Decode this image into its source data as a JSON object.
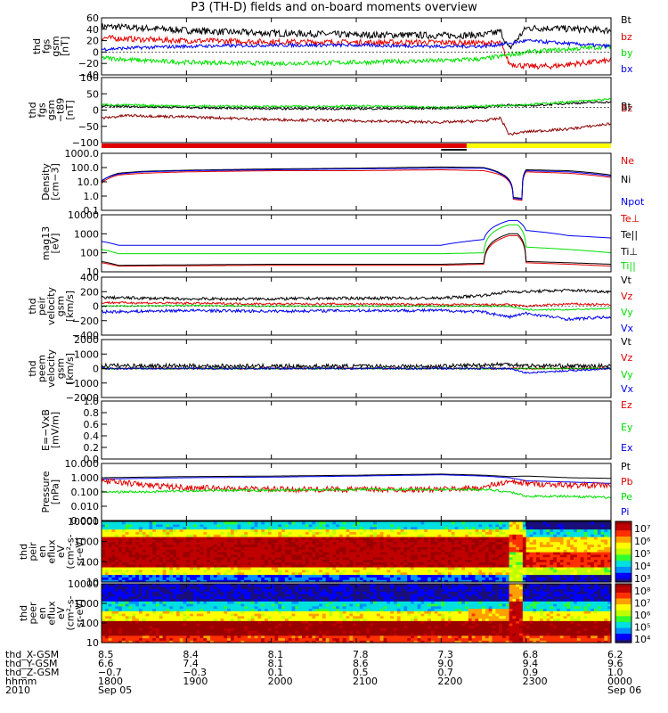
{
  "title": "P3 (TH-D) fields and on-board moments overview",
  "colors": {
    "black": "#000000",
    "red": "#e00000",
    "green": "#00e000",
    "blue": "#0000ee",
    "darkred": "#8b0000",
    "yellow": "#ffff00"
  },
  "chart_data": [
    {
      "type": "line",
      "panel": "fgs",
      "ylabel": [
        "thd",
        "fgs",
        "gsm",
        "[nT]"
      ],
      "ylim": [
        -40,
        60
      ],
      "ticks": [
        "60",
        "40",
        "20",
        "0",
        "−20",
        "−40"
      ],
      "legend": [
        {
          "text": "Bt",
          "color": "black"
        },
        {
          "text": "bz",
          "color": "red"
        },
        {
          "text": "by",
          "color": "green"
        },
        {
          "text": "bx",
          "color": "blue"
        }
      ],
      "series": [
        {
          "name": "Bt",
          "color": "black",
          "x": [
            18.0,
            18.5,
            19.0,
            19.5,
            20.0,
            20.5,
            21.0,
            21.5,
            22.0,
            22.5,
            22.7,
            22.8,
            23.0,
            23.3,
            23.6,
            24.0
          ],
          "y": [
            45,
            42,
            38,
            35,
            33,
            32,
            30,
            30,
            29,
            30,
            36,
            5,
            42,
            42,
            40,
            38
          ],
          "noise": 6
        },
        {
          "name": "bz",
          "color": "red",
          "x": [
            18.0,
            18.5,
            19.0,
            20.0,
            21.0,
            22.0,
            22.5,
            22.7,
            22.8,
            23.0,
            23.3,
            23.6,
            24.0
          ],
          "y": [
            25,
            22,
            20,
            18,
            17,
            17,
            16,
            15,
            -20,
            -25,
            -25,
            -20,
            -15
          ],
          "noise": 5
        },
        {
          "name": "by",
          "color": "green",
          "x": [
            18.0,
            18.5,
            19.0,
            20.0,
            21.0,
            22.0,
            22.5,
            22.8,
            23.0,
            23.5,
            24.0
          ],
          "y": [
            -10,
            -15,
            -18,
            -20,
            -18,
            -15,
            -12,
            -5,
            0,
            5,
            10
          ],
          "noise": 4
        },
        {
          "name": "bx",
          "color": "blue",
          "x": [
            18.0,
            18.5,
            19.0,
            20.0,
            21.0,
            22.0,
            22.5,
            22.8,
            23.0,
            23.5,
            24.0
          ],
          "y": [
            5,
            8,
            10,
            12,
            12,
            10,
            10,
            15,
            20,
            15,
            10
          ],
          "noise": 3
        }
      ]
    },
    {
      "type": "line",
      "panel": "fgs_t89",
      "ylabel": [
        "thd",
        "fgs",
        "gsm",
        "−t89",
        "[nT]"
      ],
      "ylim": [
        -130,
        110
      ],
      "ticks": [
        "100",
        "50",
        "0",
        "−50",
        "−100"
      ],
      "legend": [
        {
          "text": "Bt",
          "color": "black"
        },
        {
          "text": "Bz",
          "color": "darkred"
        }
      ],
      "series": [
        {
          "name": "Bt",
          "color": "black",
          "x": [
            18.0,
            19.0,
            20.0,
            21.0,
            22.0,
            22.5,
            22.8,
            23.0,
            23.5,
            24.0
          ],
          "y": [
            5,
            0,
            -5,
            -5,
            -3,
            0,
            10,
            5,
            15,
            20
          ],
          "noise": 4
        },
        {
          "name": "Bz",
          "color": "darkred",
          "x": [
            18.0,
            18.3,
            19.0,
            20.0,
            21.0,
            22.0,
            22.5,
            22.7,
            22.8,
            23.0,
            23.5,
            24.0
          ],
          "y": [
            -40,
            -30,
            -35,
            -45,
            -50,
            -55,
            -50,
            -40,
            -100,
            -90,
            -80,
            -60
          ],
          "noise": 5
        },
        {
          "name": "by",
          "color": "green",
          "x": [
            18.0,
            19.0,
            20.0,
            21.0,
            22.0,
            23.0,
            24.0
          ],
          "y": [
            10,
            5,
            3,
            5,
            0,
            10,
            30
          ],
          "noise": 4
        }
      ]
    },
    {
      "type": "line",
      "panel": "density",
      "ylabel": [
        "Density",
        "[cm−3]"
      ],
      "log": true,
      "ylim": [
        0.1,
        1000
      ],
      "ticks": [
        "1000.0",
        "100.0",
        "10.0",
        "1.0",
        "0.1"
      ],
      "legend": [
        {
          "text": "Ne",
          "color": "red"
        },
        {
          "text": "Ni",
          "color": "black"
        },
        {
          "text": "Npot",
          "color": "blue"
        }
      ],
      "series": [
        {
          "name": "Ne",
          "color": "red",
          "x": [
            18.0,
            18.2,
            18.5,
            19.0,
            20.0,
            21.0,
            22.0,
            22.5,
            22.7,
            22.85,
            22.95,
            23.0,
            23.5,
            24.0
          ],
          "y": [
            8,
            30,
            40,
            50,
            60,
            60,
            70,
            60,
            30,
            0.6,
            0.5,
            50,
            40,
            20
          ],
          "noise": 0
        },
        {
          "name": "Ni",
          "color": "black",
          "x": [
            18.0,
            18.2,
            18.5,
            19.0,
            20.0,
            21.0,
            22.0,
            22.5,
            22.7,
            22.85,
            22.95,
            23.0,
            23.5,
            24.0
          ],
          "y": [
            10,
            40,
            55,
            65,
            80,
            90,
            110,
            100,
            40,
            0.8,
            0.7,
            70,
            60,
            30
          ],
          "noise": 0
        },
        {
          "name": "Npot",
          "color": "blue",
          "x": [
            18.0,
            18.2,
            18.5,
            19.0,
            20.0,
            21.0,
            22.0,
            22.5,
            22.7,
            22.85,
            22.95,
            23.0,
            23.5,
            24.0
          ],
          "y": [
            12,
            35,
            50,
            60,
            70,
            80,
            90,
            90,
            35,
            0.7,
            0.6,
            60,
            50,
            25
          ],
          "noise": 0
        }
      ]
    },
    {
      "type": "line",
      "panel": "temperature",
      "ylabel": [
        "mag13",
        "[eV]"
      ],
      "log": true,
      "ylim": [
        10,
        10000
      ],
      "ticks": [
        "10000",
        "1000",
        "100",
        "10"
      ],
      "legend": [
        {
          "text": "Te⊥",
          "color": "red"
        },
        {
          "text": "Te||",
          "color": "black"
        },
        {
          "text": "Ti⊥",
          "color": "black"
        },
        {
          "text": "Ti||",
          "color": "green"
        }
      ],
      "series": [
        {
          "name": "Ti",
          "color": "blue",
          "x": [
            18.0,
            18.2,
            20.0,
            22.0,
            22.5,
            22.8,
            22.9,
            23.0,
            23.5,
            24.0
          ],
          "y": [
            400,
            250,
            250,
            250,
            500,
            5000,
            5000,
            1500,
            800,
            600
          ],
          "noise": 0
        },
        {
          "name": "Ti||",
          "color": "green",
          "x": [
            18.0,
            18.2,
            20.0,
            22.0,
            22.5,
            22.8,
            22.9,
            23.0,
            23.5,
            24.0
          ],
          "y": [
            150,
            90,
            90,
            90,
            100,
            3000,
            3000,
            200,
            150,
            100
          ],
          "noise": 0
        },
        {
          "name": "Te⊥",
          "color": "red",
          "x": [
            18.0,
            18.2,
            20.0,
            22.0,
            22.5,
            22.8,
            22.9,
            23.0,
            23.5,
            24.0
          ],
          "y": [
            30,
            20,
            22,
            22,
            25,
            800,
            800,
            30,
            25,
            20
          ],
          "noise": 0
        },
        {
          "name": "Te||",
          "color": "black",
          "x": [
            18.0,
            18.2,
            20.0,
            22.0,
            22.5,
            22.8,
            22.9,
            23.0,
            23.5,
            24.0
          ],
          "y": [
            35,
            22,
            25,
            25,
            28,
            1000,
            1000,
            35,
            30,
            25
          ],
          "noise": 0
        }
      ]
    },
    {
      "type": "line",
      "panel": "peir_velocity",
      "ylabel": [
        "thd",
        "peir",
        "velocity",
        "gsm",
        "[km/s]"
      ],
      "ylim": [
        -400,
        400
      ],
      "ticks": [
        "400",
        "200",
        "0",
        "−200",
        "−400"
      ],
      "legend": [
        {
          "text": "Vt",
          "color": "black"
        },
        {
          "text": "Vz",
          "color": "red"
        },
        {
          "text": "Vy",
          "color": "green"
        },
        {
          "text": "Vx",
          "color": "blue"
        }
      ],
      "series": [
        {
          "name": "Vt",
          "color": "black",
          "x": [
            18.0,
            19.0,
            20.0,
            21.0,
            22.0,
            22.5,
            22.8,
            23.0,
            23.5,
            24.0
          ],
          "y": [
            120,
            100,
            100,
            110,
            110,
            150,
            200,
            200,
            220,
            200
          ],
          "noise": 20
        },
        {
          "name": "Vz",
          "color": "red",
          "x": [
            18.0,
            19.0,
            20.0,
            21.0,
            22.0,
            22.5,
            22.8,
            23.0,
            23.5,
            24.0
          ],
          "y": [
            50,
            40,
            30,
            30,
            20,
            20,
            20,
            0,
            30,
            20
          ],
          "noise": 15
        },
        {
          "name": "Vy",
          "color": "green",
          "x": [
            18.0,
            19.0,
            20.0,
            21.0,
            22.0,
            22.5,
            22.8,
            23.0,
            23.5,
            24.0
          ],
          "y": [
            0,
            10,
            0,
            0,
            0,
            0,
            0,
            -50,
            -50,
            -30
          ],
          "noise": 10
        },
        {
          "name": "Vx",
          "color": "blue",
          "x": [
            18.0,
            19.0,
            20.0,
            21.0,
            22.0,
            22.5,
            22.8,
            23.0,
            23.5,
            24.0
          ],
          "y": [
            -80,
            -60,
            -70,
            -60,
            -60,
            -80,
            -150,
            -100,
            -180,
            -150
          ],
          "noise": 20
        }
      ]
    },
    {
      "type": "line",
      "panel": "peem_velocity",
      "ylabel": [
        "thd",
        "peem",
        "velocity",
        "gsm",
        "[km/s]"
      ],
      "ylim": [
        -2000,
        2000
      ],
      "ticks": [
        "2000",
        "1000",
        "0",
        "−1000",
        "−2000"
      ],
      "legend": [
        {
          "text": "Vt",
          "color": "black"
        },
        {
          "text": "Vz",
          "color": "red"
        },
        {
          "text": "Vy",
          "color": "green"
        },
        {
          "text": "Vx",
          "color": "blue"
        }
      ],
      "series": [
        {
          "name": "Vt",
          "color": "black",
          "x": [
            18.0,
            20.0,
            22.0,
            22.8,
            23.0,
            24.0
          ],
          "y": [
            200,
            150,
            150,
            300,
            200,
            150
          ],
          "noise": 150
        },
        {
          "name": "Vz",
          "color": "red",
          "x": [
            18.0,
            24.0
          ],
          "y": [
            0,
            0
          ],
          "noise": 60
        },
        {
          "name": "Vy",
          "color": "green",
          "x": [
            18.0,
            24.0
          ],
          "y": [
            0,
            0
          ],
          "noise": 50
        },
        {
          "name": "Vx",
          "color": "blue",
          "x": [
            18.0,
            22.8,
            23.0,
            24.0
          ],
          "y": [
            0,
            0,
            -300,
            0
          ],
          "noise": 60
        }
      ]
    },
    {
      "type": "line",
      "panel": "efield",
      "ylabel": [
        "E=−VxB",
        "[mV/m]"
      ],
      "ylim": [
        0,
        1
      ],
      "ticks": [
        "1.0",
        "0.8",
        "0.6",
        "0.4",
        "0.2",
        "0.0"
      ],
      "legend": [
        {
          "text": "Ez",
          "color": "red"
        },
        {
          "text": "Ey",
          "color": "green"
        },
        {
          "text": "Ex",
          "color": "blue"
        }
      ],
      "series": []
    },
    {
      "type": "line",
      "panel": "pressure",
      "ylabel": [
        "Pressure",
        "[nPa]"
      ],
      "log": true,
      "ylim": [
        0.001,
        10
      ],
      "ticks": [
        "10.000",
        "1.000",
        "0.100",
        "0.010",
        "0.001"
      ],
      "legend": [
        {
          "text": "Pt",
          "color": "black"
        },
        {
          "text": "Pb",
          "color": "red"
        },
        {
          "text": "Pe",
          "color": "green"
        },
        {
          "text": "Pi",
          "color": "blue"
        }
      ],
      "series": [
        {
          "name": "Pt",
          "color": "black",
          "x": [
            18.0,
            19.0,
            20.0,
            21.0,
            22.0,
            22.5,
            22.8,
            23.0,
            23.5,
            24.0
          ],
          "y": [
            1.0,
            1.2,
            1.3,
            1.5,
            1.8,
            1.5,
            1.2,
            1.3,
            1.0,
            0.9
          ],
          "noise": 0
        },
        {
          "name": "Pi",
          "color": "blue",
          "x": [
            18.0,
            19.0,
            20.0,
            21.0,
            22.0,
            22.5,
            22.8,
            23.0,
            23.5,
            24.0
          ],
          "y": [
            0.8,
            1.0,
            1.1,
            1.3,
            1.6,
            1.3,
            1.0,
            0.6,
            0.5,
            0.4
          ],
          "noise": 0
        },
        {
          "name": "Pb",
          "color": "red",
          "x": [
            18.0,
            18.5,
            19.0,
            20.0,
            21.0,
            22.0,
            22.5,
            22.8,
            23.0,
            23.5,
            24.0
          ],
          "y": [
            0.6,
            0.3,
            0.2,
            0.15,
            0.15,
            0.15,
            0.2,
            0.5,
            0.4,
            0.3,
            0.3
          ],
          "noise": 0.6
        },
        {
          "name": "Pe",
          "color": "green",
          "x": [
            18.0,
            18.5,
            19.0,
            20.0,
            21.0,
            22.0,
            22.5,
            22.8,
            23.0,
            23.5,
            24.0
          ],
          "y": [
            0.1,
            0.1,
            0.12,
            0.13,
            0.15,
            0.15,
            0.15,
            0.1,
            0.05,
            0.05,
            0.04
          ],
          "noise": 0.2
        }
      ]
    },
    {
      "type": "heatmap",
      "panel": "peir_spec",
      "ylabel": [
        "thd",
        "peir",
        "en",
        "eflux",
        "eV",
        "(cm²-s-",
        "sr-eV)"
      ],
      "log": true,
      "ylim": [
        10,
        20000
      ],
      "ticks": [
        "10000",
        "1000",
        "100",
        "10"
      ],
      "colorbar_labels": [
        "10⁷",
        "10⁶",
        "10⁵",
        "10⁴",
        "10³"
      ]
    },
    {
      "type": "heatmap",
      "panel": "peer_spec",
      "ylabel": [
        "thd",
        "peer",
        "en",
        "eflux",
        "eV",
        "(cm²-s-",
        "sr-eV)"
      ],
      "log": true,
      "ylim": [
        7,
        20000
      ],
      "ticks": [
        "10000",
        "1000",
        "100",
        "10"
      ],
      "colorbar_labels": [
        "10⁸",
        "10⁷",
        "10⁶",
        "10⁵",
        "10⁴"
      ]
    }
  ],
  "footer": {
    "rows": [
      {
        "label": "thd_X-GSM",
        "values": [
          "8.5",
          "8.4",
          "8.1",
          "7.8",
          "7.3",
          "6.8",
          "6.2"
        ]
      },
      {
        "label": "thd_Y-GSM",
        "values": [
          "6.6",
          "7.4",
          "8.1",
          "8.6",
          "9.0",
          "9.4",
          "9.6"
        ]
      },
      {
        "label": "thd_Z-GSM",
        "values": [
          "−0.7",
          "−0.3",
          "0.1",
          "0.5",
          "0.7",
          "0.9",
          "1.0"
        ]
      },
      {
        "label": "hhmm",
        "values": [
          "1800",
          "1900",
          "2000",
          "2100",
          "2200",
          "2300",
          "0000"
        ]
      },
      {
        "label": "2010",
        "values": [
          "Sep 05",
          "",
          "",
          "",
          "",
          "",
          "Sep 06"
        ]
      }
    ]
  }
}
